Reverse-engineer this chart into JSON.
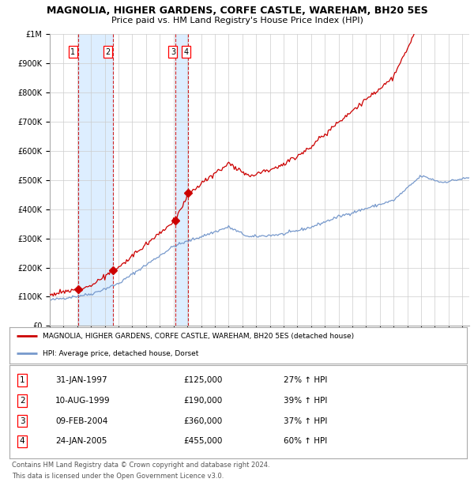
{
  "title": "MAGNOLIA, HIGHER GARDENS, CORFE CASTLE, WAREHAM, BH20 5ES",
  "subtitle": "Price paid vs. HM Land Registry's House Price Index (HPI)",
  "legend_line1": "MAGNOLIA, HIGHER GARDENS, CORFE CASTLE, WAREHAM, BH20 5ES (detached house)",
  "legend_line2": "HPI: Average price, detached house, Dorset",
  "footer1": "Contains HM Land Registry data © Crown copyright and database right 2024.",
  "footer2": "This data is licensed under the Open Government Licence v3.0.",
  "sales": [
    {
      "num": 1,
      "date": "31-JAN-1997",
      "price": 125000,
      "pct": "27%",
      "dir": "↑"
    },
    {
      "num": 2,
      "date": "10-AUG-1999",
      "price": 190000,
      "pct": "39%",
      "dir": "↑"
    },
    {
      "num": 3,
      "date": "09-FEB-2004",
      "price": 360000,
      "pct": "37%",
      "dir": "↑"
    },
    {
      "num": 4,
      "date": "24-JAN-2005",
      "price": 455000,
      "pct": "60%",
      "dir": "↑"
    }
  ],
  "sale_dates_decimal": [
    1997.08,
    1999.61,
    2004.11,
    2005.07
  ],
  "red_line_color": "#cc0000",
  "blue_line_color": "#7799cc",
  "marker_color": "#cc0000",
  "vline_color": "#cc0000",
  "shade_color": "#ddeeff",
  "grid_color": "#cccccc",
  "bg_color": "#ffffff",
  "ylim": [
    0,
    1000000
  ],
  "xlim_start": 1995.0,
  "xlim_end": 2025.5
}
